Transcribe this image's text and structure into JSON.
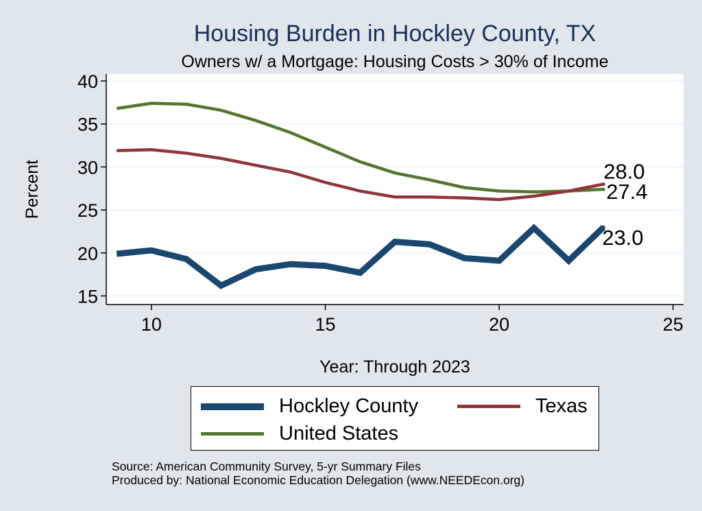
{
  "colors": {
    "hockley": "#1a476f",
    "texas": "#90353b",
    "us": "#55752f",
    "background": "#dfe7ed",
    "title": "#1a2f5a"
  },
  "chart_data": {
    "type": "line",
    "title": "Housing Burden in Hockley County, TX",
    "subtitle": "Owners w/ a Mortgage: Housing Costs > 30% of Income",
    "xlabel": "Year: Through 2023",
    "ylabel": "Percent",
    "xlim": [
      8.7,
      25.3
    ],
    "ylim": [
      14,
      40.8
    ],
    "xticks": [
      10,
      15,
      20,
      25
    ],
    "yticks": [
      15,
      20,
      25,
      30,
      35,
      40
    ],
    "grid": true,
    "legend_position": "bottom",
    "x": [
      9,
      10,
      11,
      12,
      13,
      14,
      15,
      16,
      17,
      18,
      19,
      20,
      21,
      22,
      23
    ],
    "series": [
      {
        "key": "hockley",
        "name": "Hockley County",
        "values": [
          19.9,
          20.3,
          19.3,
          16.2,
          18.1,
          18.7,
          18.5,
          17.7,
          21.3,
          21.0,
          19.4,
          19.1,
          22.9,
          19.1,
          23.0
        ],
        "end_label": "23.0"
      },
      {
        "key": "texas",
        "name": "Texas",
        "values": [
          31.9,
          32.0,
          31.6,
          31.0,
          30.2,
          29.4,
          28.2,
          27.2,
          26.5,
          26.5,
          26.4,
          26.2,
          26.6,
          27.2,
          28.0
        ],
        "end_label": "28.0"
      },
      {
        "key": "us",
        "name": "United States",
        "values": [
          36.8,
          37.4,
          37.3,
          36.6,
          35.4,
          34.0,
          32.3,
          30.6,
          29.3,
          28.5,
          27.6,
          27.2,
          27.1,
          27.2,
          27.4
        ],
        "end_label": "27.4"
      }
    ]
  },
  "source": {
    "line1": "Source: American Community Survey, 5-yr Summary Files",
    "line2": "Produced by: National Economic Education Delegation (www.NEEDEcon.org)"
  }
}
